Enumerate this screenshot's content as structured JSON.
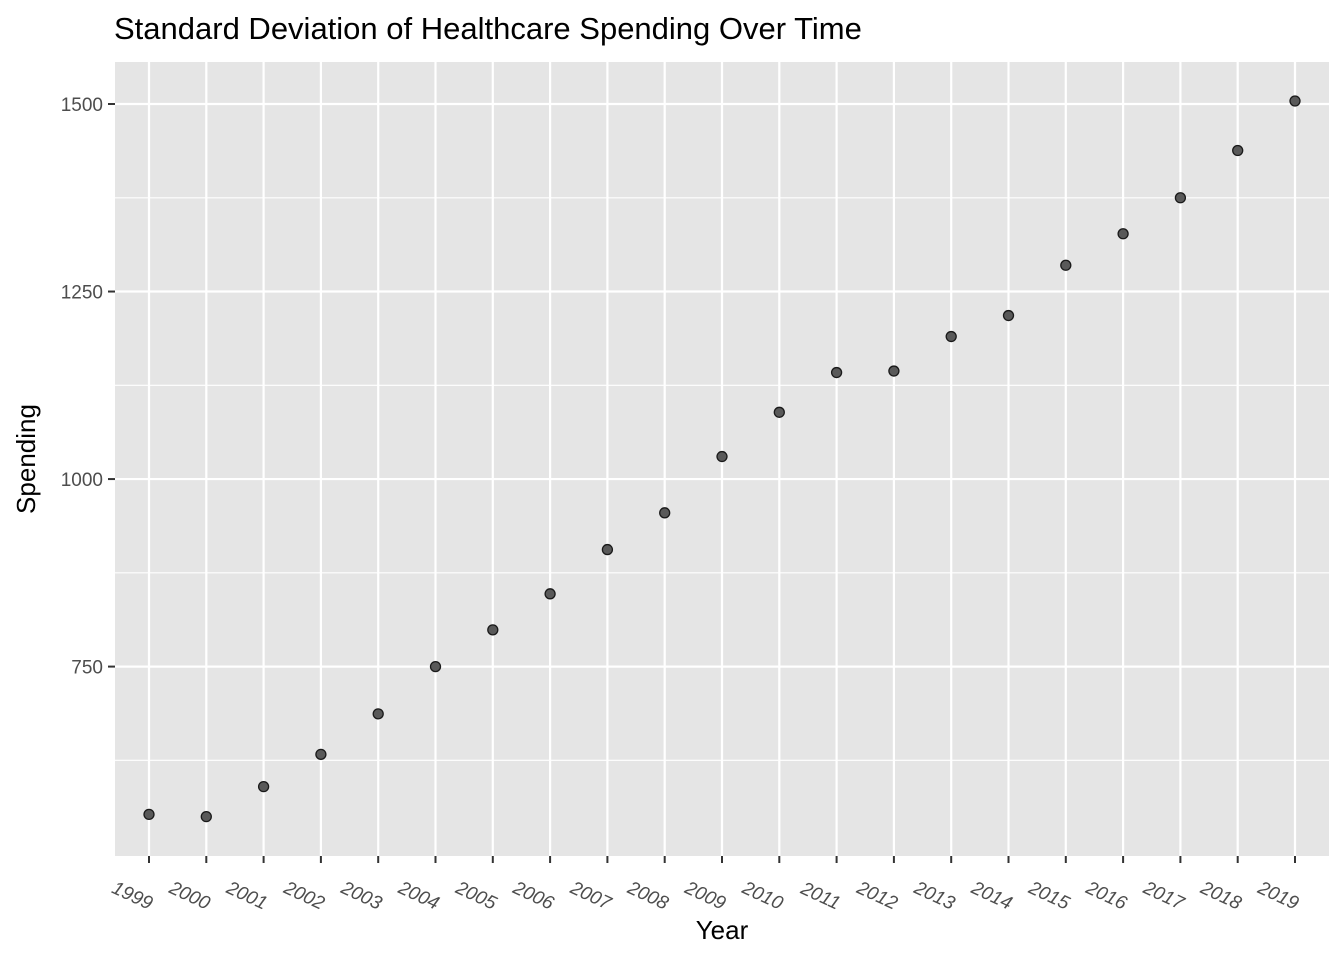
{
  "chart_data": {
    "type": "scatter",
    "title": "Standard Deviation of Healthcare Spending Over Time",
    "xlabel": "Year",
    "ylabel": "Spending",
    "x": [
      "1999",
      "2000",
      "2001",
      "2002",
      "2003",
      "2004",
      "2005",
      "2006",
      "2007",
      "2008",
      "2009",
      "2010",
      "2011",
      "2012",
      "2013",
      "2014",
      "2015",
      "2016",
      "2017",
      "2018",
      "2019"
    ],
    "y": [
      553,
      550,
      590,
      633,
      687,
      750,
      799,
      847,
      906,
      955,
      1030,
      1089,
      1142,
      1144,
      1190,
      1218,
      1285,
      1327,
      1375,
      1438,
      1504
    ],
    "y_ticks": [
      750,
      1000,
      1250,
      1500
    ],
    "ylim": [
      497.5,
      1556
    ],
    "grid": true,
    "legend": "none",
    "colors": {
      "panel": "#e5e5e5",
      "grid": "#ffffff",
      "point_fill": "#595959",
      "point_stroke": "#1a1a1a"
    }
  }
}
